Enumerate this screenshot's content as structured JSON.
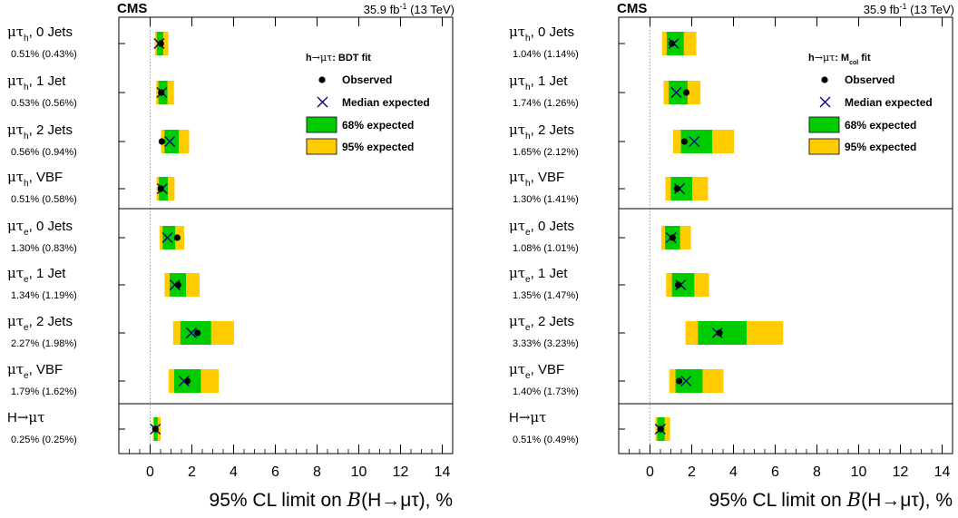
{
  "chart_data": [
    {
      "type": "limit-plot",
      "experiment": "CMS",
      "lumi_text": "35.9 fb",
      "lumi_sup": "-1",
      "energy_text": " (13 TeV)",
      "legend": {
        "title_prefix": "h",
        "title_arrow": "→",
        "title_particles": "μτ",
        "title_suffix": ": BDT fit",
        "observed": "Observed",
        "median_expected": "Median expected",
        "band68": "68% expected",
        "band95": "95% expected"
      },
      "xlabel_pre": "95% CL limit on ",
      "xlabel_italic": "B",
      "xlabel_post": "(H→μτ), %",
      "xlim": [
        -1.5,
        14.5
      ],
      "ticks": [
        0,
        2,
        4,
        6,
        8,
        10,
        12,
        14
      ],
      "tick_labels": [
        "0",
        "2",
        "4",
        "6",
        "8",
        "10",
        "12",
        "14"
      ],
      "categories": [
        {
          "channel": "μτ",
          "sub": "h",
          "jets": ", 0 Jets",
          "summary": "0.51% (0.43%)",
          "observed": 0.51,
          "expected": 0.43,
          "band68": [
            0.32,
            0.62
          ],
          "band95": [
            0.23,
            0.87
          ]
        },
        {
          "channel": "μτ",
          "sub": "h",
          "jets": ", 1 Jet",
          "summary": "0.53% (0.56%)",
          "observed": 0.53,
          "expected": 0.56,
          "band68": [
            0.4,
            0.83
          ],
          "band95": [
            0.29,
            1.14
          ]
        },
        {
          "channel": "μτ",
          "sub": "h",
          "jets": ", 2 Jets",
          "summary": "0.56% (0.94%)",
          "observed": 0.56,
          "expected": 0.94,
          "band68": [
            0.69,
            1.37
          ],
          "band95": [
            0.52,
            1.87
          ]
        },
        {
          "channel": "μτ",
          "sub": "h",
          "jets": ", VBF",
          "summary": "0.51% (0.58%)",
          "observed": 0.51,
          "expected": 0.58,
          "band68": [
            0.42,
            0.85
          ],
          "band95": [
            0.31,
            1.17
          ]
        },
        {
          "channel": "μτ",
          "sub": "e",
          "jets": ", 0 Jets",
          "summary": "1.30% (0.83%)",
          "observed": 1.3,
          "expected": 0.83,
          "band68": [
            0.6,
            1.2
          ],
          "band95": [
            0.45,
            1.63
          ]
        },
        {
          "channel": "μτ",
          "sub": "e",
          "jets": ", 1 Jet",
          "summary": "1.34% (1.19%)",
          "observed": 1.34,
          "expected": 1.19,
          "band68": [
            0.93,
            1.72
          ],
          "band95": [
            0.69,
            2.37
          ]
        },
        {
          "channel": "μτ",
          "sub": "e",
          "jets": ", 2 Jets",
          "summary": "2.27% (1.98%)",
          "observed": 2.27,
          "expected": 1.98,
          "band68": [
            1.45,
            2.92
          ],
          "band95": [
            1.1,
            4.02
          ]
        },
        {
          "channel": "μτ",
          "sub": "e",
          "jets": ", VBF",
          "summary": "1.79% (1.62%)",
          "observed": 1.79,
          "expected": 1.62,
          "band68": [
            1.15,
            2.43
          ],
          "band95": [
            0.88,
            3.29
          ]
        },
        {
          "channel": "H→μτ",
          "sub": "",
          "jets": "",
          "summary": "0.25% (0.25%)",
          "observed": 0.25,
          "expected": 0.25,
          "band68": [
            0.18,
            0.36
          ],
          "band95": [
            0.13,
            0.5
          ]
        }
      ]
    },
    {
      "type": "limit-plot",
      "experiment": "CMS",
      "lumi_text": "35.9 fb",
      "lumi_sup": "-1",
      "energy_text": " (13 TeV)",
      "legend": {
        "title_prefix": "h",
        "title_arrow": "→",
        "title_particles": "μτ",
        "title_mid": ": M",
        "title_sub": "col",
        "title_suffix": " fit",
        "observed": "Observed",
        "median_expected": "Median expected",
        "band68": "68% expected",
        "band95": "95% expected"
      },
      "xlabel_pre": "95% CL limit on ",
      "xlabel_italic": "B",
      "xlabel_post": "(H→μτ), %",
      "xlim": [
        -1.5,
        14.5
      ],
      "ticks": [
        0,
        2,
        4,
        6,
        8,
        10,
        12,
        14
      ],
      "tick_labels": [
        "0",
        "2",
        "4",
        "6",
        "8",
        "10",
        "12",
        "14"
      ],
      "categories": [
        {
          "channel": "μτ",
          "sub": "h",
          "jets": ", 0 Jets",
          "summary": "1.04% (1.14%)",
          "observed": 1.04,
          "expected": 1.14,
          "band68": [
            0.8,
            1.62
          ],
          "band95": [
            0.58,
            2.22
          ]
        },
        {
          "channel": "μτ",
          "sub": "h",
          "jets": ", 1 Jet",
          "summary": "1.74% (1.26%)",
          "observed": 1.74,
          "expected": 1.26,
          "band68": [
            0.9,
            1.8
          ],
          "band95": [
            0.65,
            2.42
          ]
        },
        {
          "channel": "μτ",
          "sub": "h",
          "jets": ", 2 Jets",
          "summary": "1.65% (2.12%)",
          "observed": 1.65,
          "expected": 2.12,
          "band68": [
            1.48,
            2.98
          ],
          "band95": [
            1.1,
            4.02
          ]
        },
        {
          "channel": "μτ",
          "sub": "h",
          "jets": ", VBF",
          "summary": "1.30% (1.41%)",
          "observed": 1.3,
          "expected": 1.41,
          "band68": [
            1.0,
            2.02
          ],
          "band95": [
            0.74,
            2.78
          ]
        },
        {
          "channel": "μτ",
          "sub": "e",
          "jets": ", 0 Jets",
          "summary": "1.08% (1.01%)",
          "observed": 1.08,
          "expected": 1.01,
          "band68": [
            0.72,
            1.44
          ],
          "band95": [
            0.54,
            1.96
          ]
        },
        {
          "channel": "μτ",
          "sub": "e",
          "jets": ", 1 Jet",
          "summary": "1.35% (1.47%)",
          "observed": 1.35,
          "expected": 1.47,
          "band68": [
            1.05,
            2.12
          ],
          "band95": [
            0.77,
            2.83
          ]
        },
        {
          "channel": "μτ",
          "sub": "e",
          "jets": ", 2 Jets",
          "summary": "3.33% (3.23%)",
          "observed": 3.33,
          "expected": 3.23,
          "band68": [
            2.3,
            4.63
          ],
          "band95": [
            1.7,
            6.38
          ]
        },
        {
          "channel": "μτ",
          "sub": "e",
          "jets": ", VBF",
          "summary": "1.40% (1.73%)",
          "observed": 1.4,
          "expected": 1.73,
          "band68": [
            1.22,
            2.52
          ],
          "band95": [
            0.92,
            3.52
          ]
        },
        {
          "channel": "H→μτ",
          "sub": "",
          "jets": "",
          "summary": "0.51% (0.49%)",
          "observed": 0.51,
          "expected": 0.49,
          "band68": [
            0.35,
            0.7
          ],
          "band95": [
            0.26,
            0.96
          ]
        }
      ]
    }
  ],
  "colors": {
    "band68": "#00cc00",
    "band95": "#ffcc00",
    "expected_marker": "#000080",
    "observed_marker": "#000000",
    "frame": "#000000",
    "zero_line": "#888888"
  }
}
